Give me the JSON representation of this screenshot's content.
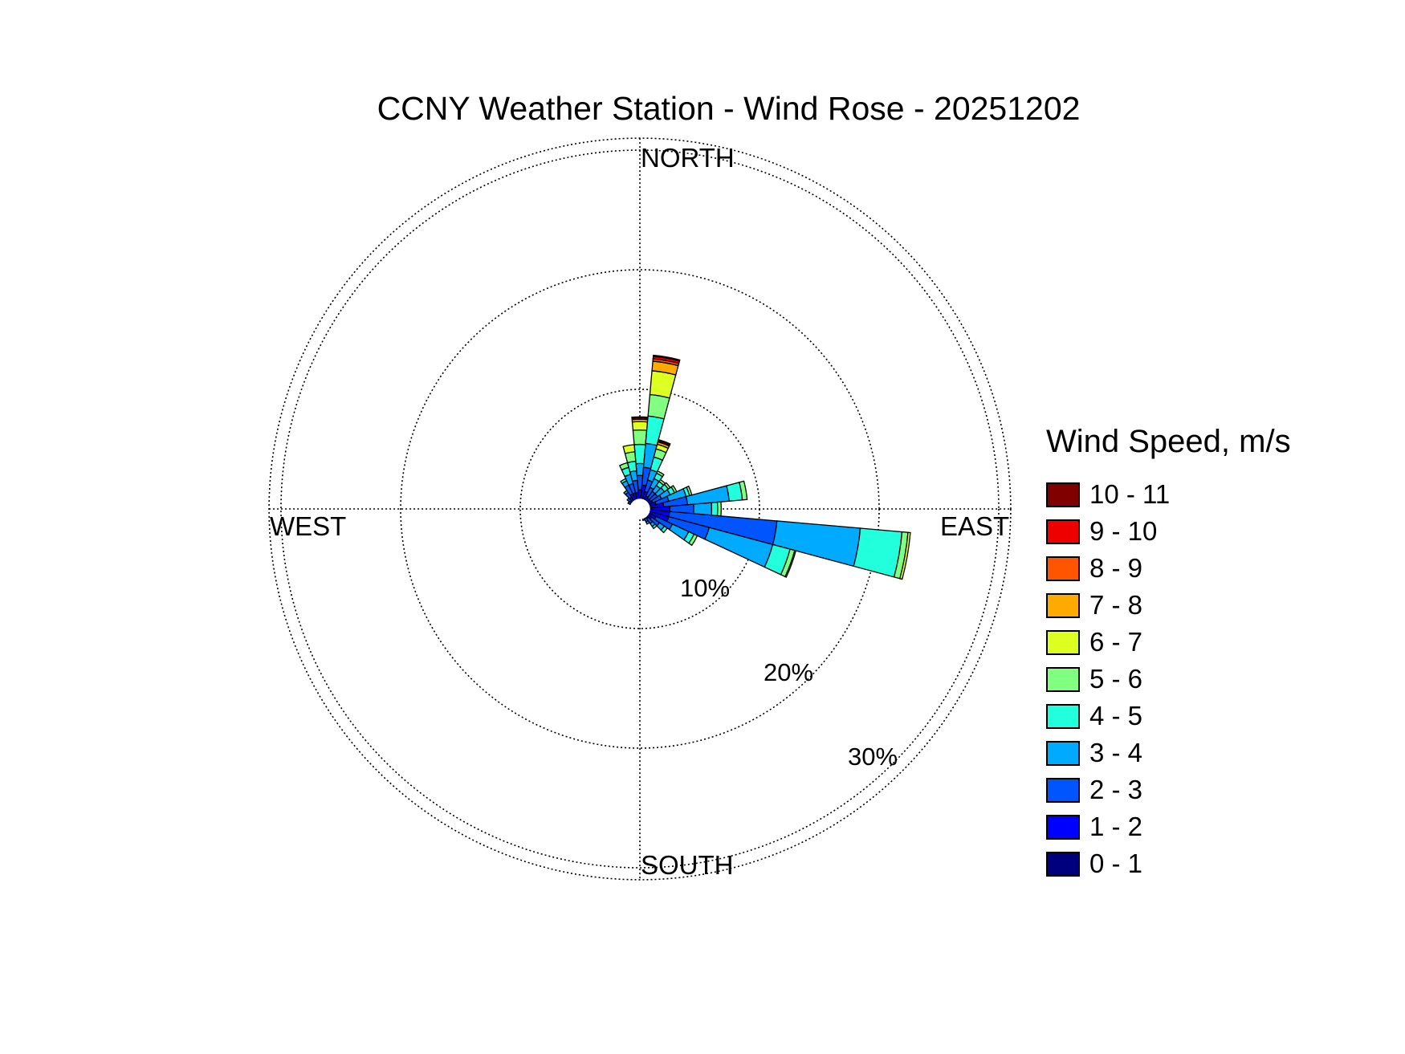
{
  "chart_data": {
    "type": "windrose",
    "title": "CCNY Weather Station - Wind Rose - 20251202",
    "legend_title": "Wind Speed, m/s",
    "legend_placement": "right",
    "directions_labels": {
      "north": "NORTH",
      "east": "EAST",
      "south": "SOUTH",
      "west": "WEST"
    },
    "ring_labels": [
      "10%",
      "20%",
      "30%"
    ],
    "ring_values_percent": [
      10,
      20,
      30
    ],
    "rmax_percent": 31,
    "grid": true,
    "speed_bins": [
      {
        "label": "0 - 1",
        "color": "#00007f"
      },
      {
        "label": "1 - 2",
        "color": "#0000ff"
      },
      {
        "label": "2 - 3",
        "color": "#0055ff"
      },
      {
        "label": "3 - 4",
        "color": "#00aaff"
      },
      {
        "label": "4 - 5",
        "color": "#22ffdd"
      },
      {
        "label": "5 - 6",
        "color": "#80ff80"
      },
      {
        "label": "6 - 7",
        "color": "#ddff22"
      },
      {
        "label": "7 - 8",
        "color": "#ffaa00"
      },
      {
        "label": "8 - 9",
        "color": "#ff5500"
      },
      {
        "label": "9 - 10",
        "color": "#ee0000"
      },
      {
        "label": "10 - 11",
        "color": "#800000"
      }
    ],
    "sector_width_deg": 10,
    "sectors": [
      {
        "dir": 0,
        "cumulative": [
          0.7,
          1.6,
          2.8,
          3.8,
          5.4,
          6.6,
          7.3,
          7.5,
          7.6,
          7.7,
          7.7
        ]
      },
      {
        "dir": 10,
        "cumulative": [
          0.8,
          2.0,
          3.5,
          5.5,
          7.8,
          9.6,
          11.6,
          12.4,
          12.6,
          12.8,
          12.9
        ]
      },
      {
        "dir": 20,
        "cumulative": [
          0.7,
          1.5,
          2.5,
          3.4,
          4.5,
          5.2,
          5.6,
          5.8,
          5.9,
          6.0,
          6.0
        ]
      },
      {
        "dir": 30,
        "cumulative": [
          0.6,
          1.2,
          2.0,
          2.8,
          3.3,
          3.5
        ]
      },
      {
        "dir": 40,
        "cumulative": [
          0.6,
          1.1,
          1.8,
          2.4,
          2.8,
          3.0
        ]
      },
      {
        "dir": 50,
        "cumulative": [
          0.6,
          1.1,
          1.8,
          2.5,
          2.9,
          3.1
        ]
      },
      {
        "dir": 60,
        "cumulative": [
          0.6,
          1.2,
          2.0,
          2.8,
          3.2,
          3.4
        ]
      },
      {
        "dir": 70,
        "cumulative": [
          0.7,
          1.4,
          2.5,
          4.0,
          4.3,
          4.5
        ]
      },
      {
        "dir": 80,
        "cumulative": [
          0.8,
          2.0,
          4.0,
          7.5,
          8.6,
          9.0
        ]
      },
      {
        "dir": 90,
        "cumulative": [
          0.8,
          2.5,
          4.5,
          6.0,
          6.5,
          6.8
        ]
      },
      {
        "dir": 100,
        "cumulative": [
          0.8,
          2.5,
          11.5,
          18.5,
          22.0,
          22.5,
          22.7
        ]
      },
      {
        "dir": 110,
        "cumulative": [
          0.7,
          2.5,
          6.0,
          11.5,
          13.0,
          13.4,
          13.5
        ]
      },
      {
        "dir": 120,
        "cumulative": [
          0.7,
          1.5,
          3.0,
          4.5,
          5.0,
          5.3
        ]
      },
      {
        "dir": 130,
        "cumulative": [
          0.6,
          1.2,
          2.0,
          2.5,
          2.8
        ]
      },
      {
        "dir": 140,
        "cumulative": [
          0.6,
          1.0,
          1.5,
          1.8,
          2.0
        ]
      },
      {
        "dir": 150,
        "cumulative": [
          0.5,
          0.9,
          1.2,
          1.4
        ]
      },
      {
        "dir": 160,
        "cumulative": [
          0.5,
          0.8,
          1.0
        ]
      },
      {
        "dir": 170,
        "cumulative": [
          0.5,
          0.7
        ]
      },
      {
        "dir": 190,
        "cumulative": [
          0.4,
          0.6
        ]
      },
      {
        "dir": 220,
        "cumulative": [
          0.4,
          0.6
        ]
      },
      {
        "dir": 260,
        "cumulative": [
          0.4,
          0.7
        ]
      },
      {
        "dir": 280,
        "cumulative": [
          0.4,
          0.8
        ]
      },
      {
        "dir": 300,
        "cumulative": [
          0.5,
          0.9,
          1.1
        ]
      },
      {
        "dir": 310,
        "cumulative": [
          0.5,
          1.0,
          1.3
        ]
      },
      {
        "dir": 320,
        "cumulative": [
          0.5,
          1.2,
          1.7,
          1.9
        ]
      },
      {
        "dir": 330,
        "cumulative": [
          0.6,
          1.4,
          2.2,
          2.6,
          2.8
        ]
      },
      {
        "dir": 340,
        "cumulative": [
          0.6,
          1.4,
          2.2,
          3.0,
          3.6,
          4.0
        ]
      },
      {
        "dir": 350,
        "cumulative": [
          0.6,
          1.4,
          2.4,
          3.2,
          4.0,
          4.8,
          5.4
        ]
      }
    ]
  }
}
